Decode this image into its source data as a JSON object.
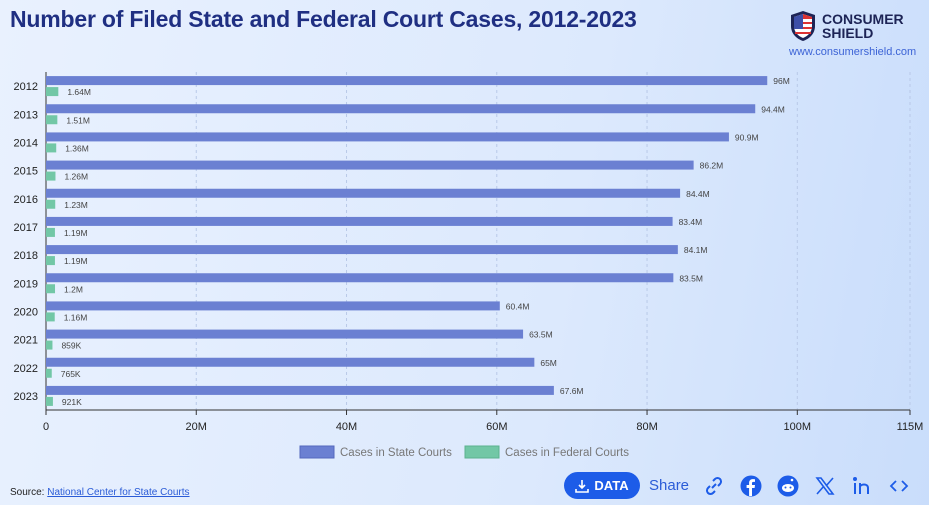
{
  "header": {
    "title": "Number of Filed State and Federal Court Cases, 2012-2023",
    "logo_text": [
      "CONSUMER",
      "SHIELD"
    ],
    "logo_url": "www.consumershield.com"
  },
  "footer": {
    "source_label": "Source:",
    "source_link": "National Center for State Courts",
    "data_button": "DATA",
    "share_label": "Share",
    "icons": [
      "link-icon",
      "facebook-icon",
      "reddit-icon",
      "x-icon",
      "linkedin-icon",
      "embed-icon"
    ]
  },
  "colors": {
    "state": "#6b80d2",
    "federal": "#72c7a6",
    "title": "#1f2f82",
    "accent": "#1d5ce8"
  },
  "chart_data": {
    "type": "bar",
    "orientation": "horizontal",
    "title": "Number of Filed State and Federal Court Cases, 2012-2023",
    "categories": [
      "2012",
      "2013",
      "2014",
      "2015",
      "2016",
      "2017",
      "2018",
      "2019",
      "2020",
      "2021",
      "2022",
      "2023"
    ],
    "series": [
      {
        "name": "Cases in State Courts",
        "values": [
          96000000,
          94400000,
          90900000,
          86200000,
          84400000,
          83400000,
          84100000,
          83500000,
          60400000,
          63500000,
          65000000,
          67600000
        ],
        "labels": [
          "96M",
          "94.4M",
          "90.9M",
          "86.2M",
          "84.4M",
          "83.4M",
          "84.1M",
          "83.5M",
          "60.4M",
          "63.5M",
          "65M",
          "67.6M"
        ]
      },
      {
        "name": "Cases in Federal Courts",
        "values": [
          1640000,
          1510000,
          1360000,
          1260000,
          1230000,
          1190000,
          1190000,
          1200000,
          1160000,
          859000,
          765000,
          921000
        ],
        "labels": [
          "1.64M",
          "1.51M",
          "1.36M",
          "1.26M",
          "1.23M",
          "1.19M",
          "1.19M",
          "1.2M",
          "1.16M",
          "859K",
          "765K",
          "921K"
        ]
      }
    ],
    "xlim": [
      0,
      115000000
    ],
    "xticks": [
      0,
      20000000,
      40000000,
      60000000,
      80000000,
      100000000,
      115000000
    ],
    "xtick_labels": [
      "0",
      "20M",
      "40M",
      "60M",
      "80M",
      "100M",
      "115M"
    ],
    "grid": true,
    "legend": "bottom-center"
  }
}
